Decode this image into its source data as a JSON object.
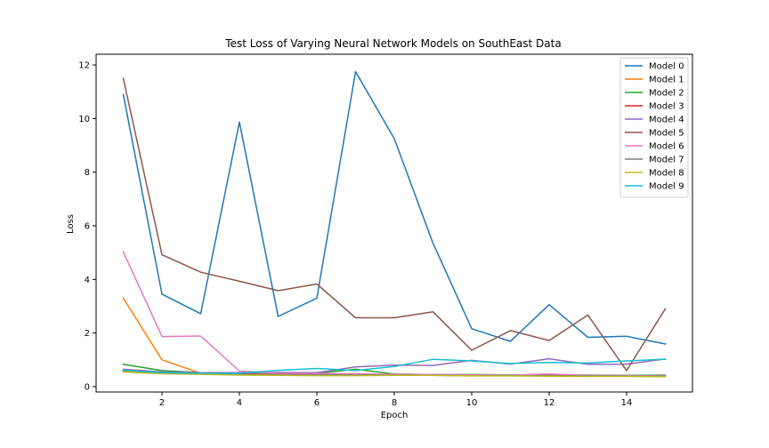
{
  "chart_data": {
    "type": "line",
    "title": "Test Loss of Varying Neural Network Models on SouthEast Data",
    "xlabel": "Epoch",
    "ylabel": "Loss",
    "xlim": [
      0.3,
      15.7
    ],
    "ylim": [
      -0.2,
      12.4
    ],
    "xticks": [
      2,
      4,
      6,
      8,
      10,
      12,
      14
    ],
    "yticks": [
      0,
      2,
      4,
      6,
      8,
      10,
      12
    ],
    "grid": false,
    "legend_position": "top-right",
    "x": [
      1,
      2,
      3,
      4,
      5,
      6,
      7,
      8,
      9,
      10,
      11,
      12,
      13,
      14,
      15
    ],
    "series": [
      {
        "name": "Model 0",
        "color": "#1f77b4",
        "values": [
          10.9,
          3.45,
          2.72,
          9.87,
          2.62,
          3.3,
          11.75,
          9.25,
          5.35,
          2.16,
          1.69,
          3.06,
          1.84,
          1.88,
          1.59
        ]
      },
      {
        "name": "Model 1",
        "color": "#ff7f0e",
        "values": [
          3.3,
          1.0,
          0.5,
          0.48,
          0.45,
          0.45,
          0.44,
          0.44,
          0.43,
          0.43,
          0.42,
          0.41,
          0.41,
          0.4,
          0.4
        ]
      },
      {
        "name": "Model 2",
        "color": "#2ca02c",
        "values": [
          0.83,
          0.6,
          0.52,
          0.52,
          0.51,
          0.5,
          0.65,
          0.47,
          0.45,
          0.45,
          0.44,
          0.43,
          0.43,
          0.42,
          0.43
        ]
      },
      {
        "name": "Model 3",
        "color": "#d62728",
        "values": [
          0.58,
          0.5,
          0.48,
          0.47,
          0.46,
          0.45,
          0.44,
          0.43,
          0.43,
          0.42,
          0.42,
          0.41,
          0.41,
          0.4,
          0.4
        ]
      },
      {
        "name": "Model 4",
        "color": "#9467bd",
        "values": [
          0.65,
          0.55,
          0.52,
          0.52,
          0.53,
          0.52,
          0.74,
          0.8,
          0.79,
          0.98,
          0.84,
          1.04,
          0.83,
          0.84,
          1.03
        ]
      },
      {
        "name": "Model 5",
        "color": "#8c564b",
        "values": [
          11.5,
          4.92,
          4.27,
          3.93,
          3.58,
          3.83,
          2.57,
          2.57,
          2.79,
          1.36,
          2.09,
          1.72,
          2.67,
          0.6,
          2.9
        ]
      },
      {
        "name": "Model 6",
        "color": "#e377c2",
        "values": [
          5.03,
          1.87,
          1.89,
          0.58,
          0.5,
          0.49,
          0.48,
          0.46,
          0.45,
          0.44,
          0.43,
          0.47,
          0.42,
          0.41,
          0.41
        ]
      },
      {
        "name": "Model 7",
        "color": "#7f7f7f",
        "values": [
          0.6,
          0.5,
          0.47,
          0.46,
          0.45,
          0.44,
          0.44,
          0.43,
          0.42,
          0.41,
          0.41,
          0.4,
          0.4,
          0.39,
          0.39
        ]
      },
      {
        "name": "Model 8",
        "color": "#bcbd22",
        "values": [
          0.55,
          0.48,
          0.46,
          0.43,
          0.42,
          0.41,
          0.41,
          0.42,
          0.42,
          0.4,
          0.4,
          0.39,
          0.38,
          0.38,
          0.37
        ]
      },
      {
        "name": "Model 9",
        "color": "#17becf",
        "values": [
          0.62,
          0.52,
          0.5,
          0.5,
          0.61,
          0.68,
          0.6,
          0.75,
          1.02,
          0.96,
          0.86,
          0.9,
          0.88,
          0.96,
          1.02
        ]
      }
    ]
  }
}
